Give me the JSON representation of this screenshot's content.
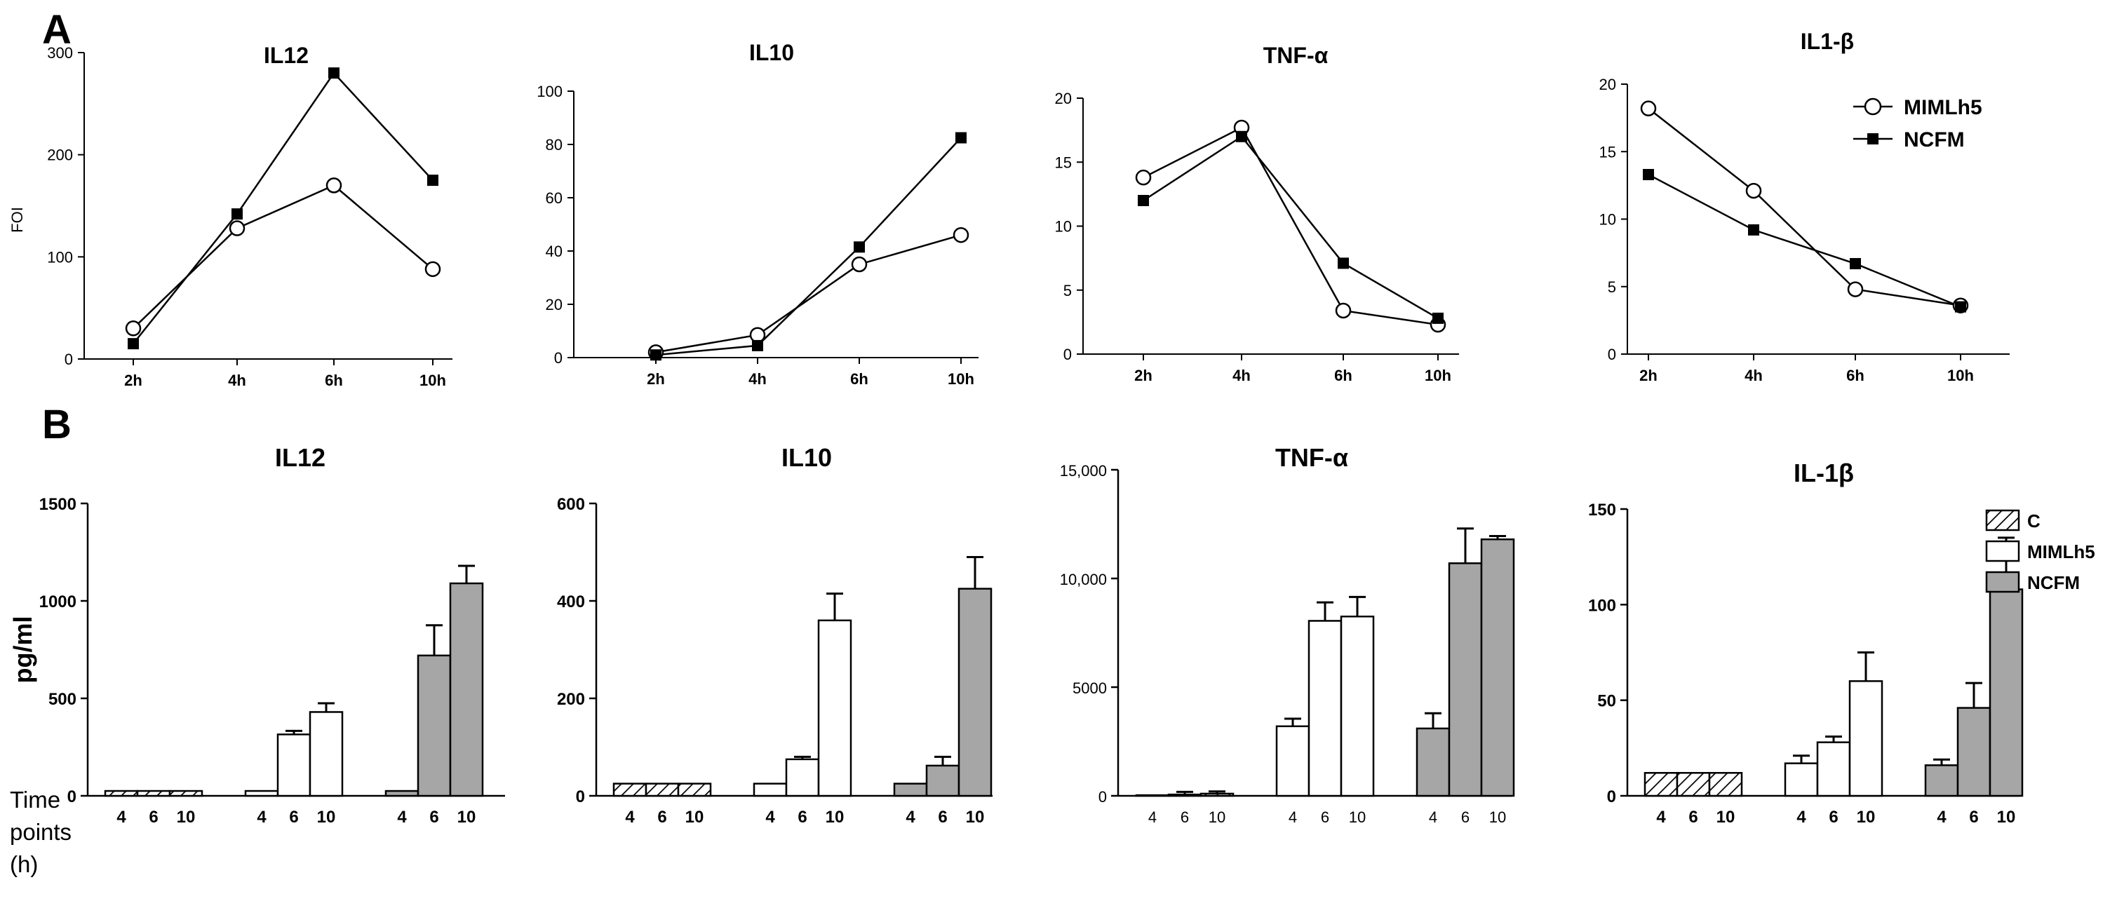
{
  "figure": {
    "panel_a_label": "A",
    "panel_b_label": "B",
    "time_label_lines": [
      "Time",
      "points",
      "(h)"
    ],
    "colors": {
      "mimlh5_fill": "#ffffff",
      "ncfm_fill": "#a6a6a6",
      "control_hatch": "#000000",
      "line": "#000000"
    }
  },
  "chart_data": [
    {
      "type": "line",
      "panel": "A",
      "title": "IL12",
      "ylabel": "FOI",
      "xlabel": "",
      "categories": [
        "2h",
        "4h",
        "6h",
        "10h"
      ],
      "ylim": [
        0,
        300
      ],
      "yticks": [
        0,
        100,
        200,
        300
      ],
      "ytick_labels": [
        "0",
        "100",
        "200",
        "300"
      ],
      "series": [
        {
          "name": "MIMLh5",
          "marker": "open-circle",
          "values": [
            30,
            128,
            170,
            88
          ]
        },
        {
          "name": "NCFM",
          "marker": "filled-square",
          "values": [
            15,
            142,
            280,
            175
          ]
        }
      ]
    },
    {
      "type": "line",
      "panel": "A",
      "title": "IL10",
      "ylabel": "",
      "xlabel": "",
      "categories": [
        "2h",
        "4h",
        "6h",
        "10h"
      ],
      "ylim": [
        0,
        100
      ],
      "yticks": [
        0,
        20,
        40,
        60,
        80,
        100
      ],
      "ytick_labels": [
        "0",
        "20",
        "40",
        "60",
        "80",
        "100"
      ],
      "series": [
        {
          "name": "MIMLh5",
          "marker": "open-circle",
          "values": [
            2,
            8.5,
            35,
            46
          ]
        },
        {
          "name": "NCFM",
          "marker": "filled-square",
          "values": [
            1,
            4.5,
            41.5,
            82.5
          ]
        }
      ]
    },
    {
      "type": "line",
      "panel": "A",
      "title": "TNF-α",
      "ylabel": "",
      "xlabel": "",
      "categories": [
        "2h",
        "4h",
        "6h",
        "10h"
      ],
      "ylim": [
        0,
        20
      ],
      "yticks": [
        0,
        5,
        10,
        15,
        20
      ],
      "ytick_labels": [
        "0",
        "5",
        "10",
        "15",
        "20"
      ],
      "series": [
        {
          "name": "MIMLh5",
          "marker": "open-circle",
          "values": [
            13.8,
            17.7,
            3.4,
            2.3
          ]
        },
        {
          "name": "NCFM",
          "marker": "filled-square",
          "values": [
            12.0,
            17.0,
            7.1,
            2.8
          ]
        }
      ]
    },
    {
      "type": "line",
      "panel": "A",
      "title": "IL1-β",
      "ylabel": "",
      "xlabel": "",
      "categories": [
        "2h",
        "4h",
        "6h",
        "10h"
      ],
      "ylim": [
        0,
        20
      ],
      "yticks": [
        0,
        5,
        10,
        15,
        20
      ],
      "ytick_labels": [
        "0",
        "5",
        "10",
        "15",
        "20"
      ],
      "legend": [
        "MIMLh5",
        "NCFM"
      ],
      "series": [
        {
          "name": "MIMLh5",
          "marker": "open-circle",
          "values": [
            18.2,
            12.1,
            4.8,
            3.6
          ]
        },
        {
          "name": "NCFM",
          "marker": "filled-square",
          "values": [
            13.3,
            9.2,
            6.7,
            3.5
          ]
        }
      ]
    },
    {
      "type": "bar",
      "panel": "B",
      "title": "IL12",
      "ylabel": "pg/ml",
      "xlabel": "Time points (h)",
      "categories": [
        "4",
        "6",
        "10"
      ],
      "ylim": [
        0,
        1500
      ],
      "yticks": [
        0,
        500,
        1000,
        1500
      ],
      "ytick_labels": [
        "0",
        "500",
        "1000",
        "1500"
      ],
      "series": [
        {
          "name": "C",
          "values": [
            25,
            25,
            25
          ],
          "errors": [
            0,
            0,
            0
          ]
        },
        {
          "name": "MIMLh5",
          "values": [
            25,
            315,
            430
          ],
          "errors": [
            0,
            18,
            45
          ]
        },
        {
          "name": "NCFM",
          "values": [
            25,
            720,
            1090
          ],
          "errors": [
            0,
            155,
            90
          ]
        }
      ]
    },
    {
      "type": "bar",
      "panel": "B",
      "title": "IL10",
      "ylabel": "",
      "xlabel": "",
      "categories": [
        "4",
        "6",
        "10"
      ],
      "ylim": [
        0,
        600
      ],
      "yticks": [
        0,
        200,
        400,
        600
      ],
      "ytick_labels": [
        "0",
        "200",
        "400",
        "600"
      ],
      "series": [
        {
          "name": "C",
          "values": [
            25,
            25,
            25
          ],
          "errors": [
            0,
            0,
            0
          ]
        },
        {
          "name": "MIMLh5",
          "values": [
            25,
            75,
            360
          ],
          "errors": [
            0,
            5,
            55
          ]
        },
        {
          "name": "NCFM",
          "values": [
            25,
            62,
            425
          ],
          "errors": [
            0,
            18,
            65
          ]
        }
      ]
    },
    {
      "type": "bar",
      "panel": "B",
      "title": "TNF-α",
      "ylabel": "",
      "xlabel": "",
      "categories": [
        "4",
        "6",
        "10"
      ],
      "ylim": [
        0,
        15000
      ],
      "yticks": [
        0,
        5000,
        10000,
        15000
      ],
      "ytick_labels": [
        "0",
        "5000",
        "10,000",
        "15,000"
      ],
      "series": [
        {
          "name": "C",
          "values": [
            30,
            60,
            100
          ],
          "errors": [
            0,
            120,
            100
          ]
        },
        {
          "name": "MIMLh5",
          "values": [
            3200,
            8050,
            8250
          ],
          "errors": [
            350,
            850,
            900
          ]
        },
        {
          "name": "NCFM",
          "values": [
            3100,
            10700,
            11800
          ],
          "errors": [
            700,
            1600,
            150
          ]
        }
      ]
    },
    {
      "type": "bar",
      "panel": "B",
      "title": "IL-1β",
      "ylabel": "",
      "xlabel": "",
      "categories": [
        "4",
        "6",
        "10"
      ],
      "ylim": [
        0,
        150
      ],
      "yticks": [
        0,
        50,
        100,
        150
      ],
      "ytick_labels": [
        "0",
        "50",
        "100",
        "150"
      ],
      "legend": [
        "C",
        "MIMLh5",
        "NCFM"
      ],
      "series": [
        {
          "name": "C",
          "values": [
            12,
            12,
            12
          ],
          "errors": [
            0,
            0,
            0
          ]
        },
        {
          "name": "MIMLh5",
          "values": [
            17,
            28,
            60
          ],
          "errors": [
            4,
            3,
            15
          ]
        },
        {
          "name": "NCFM",
          "values": [
            16,
            46,
            108
          ],
          "errors": [
            3,
            13,
            27
          ]
        }
      ]
    }
  ]
}
